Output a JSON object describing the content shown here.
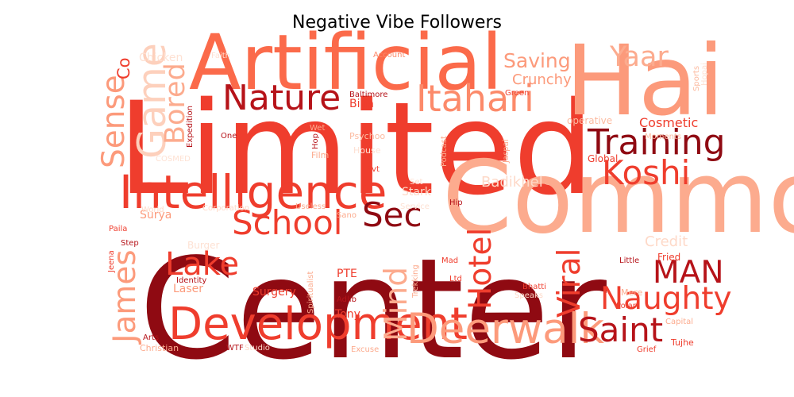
{
  "title": "Negative Vibe Followers",
  "colormap": "Reds",
  "words": [
    {
      "text": "Center",
      "weight": 1.0,
      "shade": 0.92,
      "vertical": false
    },
    {
      "text": "Limited",
      "weight": 0.92,
      "shade": 0.62,
      "vertical": false
    },
    {
      "text": "Common",
      "weight": 0.72,
      "shade": 0.3,
      "vertical": false
    },
    {
      "text": "Hai",
      "weight": 0.7,
      "shade": 0.35,
      "vertical": false
    },
    {
      "text": "Artificial",
      "weight": 0.55,
      "shade": 0.5,
      "vertical": false
    },
    {
      "text": "Intelligence",
      "weight": 0.33,
      "shade": 0.62,
      "vertical": false
    },
    {
      "text": "Development",
      "weight": 0.32,
      "shade": 0.62,
      "vertical": false
    },
    {
      "text": "Deerwalk",
      "weight": 0.3,
      "shade": 0.35,
      "vertical": false
    },
    {
      "text": "Game",
      "weight": 0.28,
      "shade": 0.18,
      "vertical": true
    },
    {
      "text": "Itahari",
      "weight": 0.26,
      "shade": 0.4,
      "vertical": false
    },
    {
      "text": "Nature",
      "weight": 0.25,
      "shade": 0.82,
      "vertical": false
    },
    {
      "text": "Training",
      "weight": 0.25,
      "shade": 0.92,
      "vertical": false
    },
    {
      "text": "School",
      "weight": 0.24,
      "shade": 0.62,
      "vertical": false
    },
    {
      "text": "Koshi",
      "weight": 0.24,
      "shade": 0.62,
      "vertical": false
    },
    {
      "text": "Sec",
      "weight": 0.24,
      "shade": 0.92,
      "vertical": false
    },
    {
      "text": "Saint",
      "weight": 0.24,
      "shade": 0.82,
      "vertical": false
    },
    {
      "text": "Lake",
      "weight": 0.23,
      "shade": 0.62,
      "vertical": false
    },
    {
      "text": "Naughty",
      "weight": 0.22,
      "shade": 0.62,
      "vertical": false
    },
    {
      "text": "Mind",
      "weight": 0.22,
      "shade": 0.3,
      "vertical": true
    },
    {
      "text": "Hotel",
      "weight": 0.22,
      "shade": 0.62,
      "vertical": true
    },
    {
      "text": "Viral",
      "weight": 0.22,
      "shade": 0.62,
      "vertical": true
    },
    {
      "text": "James",
      "weight": 0.22,
      "shade": 0.35,
      "vertical": true
    },
    {
      "text": "Sense",
      "weight": 0.22,
      "shade": 0.35,
      "vertical": true
    },
    {
      "text": "MAN",
      "weight": 0.22,
      "shade": 0.82,
      "vertical": false
    },
    {
      "text": "Bored",
      "weight": 0.2,
      "shade": 0.3,
      "vertical": true
    },
    {
      "text": "Yaar",
      "weight": 0.2,
      "shade": 0.3,
      "vertical": false
    },
    {
      "text": "Saving",
      "weight": 0.14,
      "shade": 0.35,
      "vertical": false
    },
    {
      "text": "Co",
      "weight": 0.12,
      "shade": 0.62,
      "vertical": true
    },
    {
      "text": "Crunchy",
      "weight": 0.1,
      "shade": 0.35,
      "vertical": false
    },
    {
      "text": "Badikhel",
      "weight": 0.1,
      "shade": 0.15,
      "vertical": false
    },
    {
      "text": "Credit",
      "weight": 0.1,
      "shade": 0.15,
      "vertical": false
    },
    {
      "text": "Cosmetic",
      "weight": 0.09,
      "shade": 0.62,
      "vertical": false
    },
    {
      "text": "Stark",
      "weight": 0.08,
      "shade": 0.15,
      "vertical": false
    },
    {
      "text": "Surya",
      "weight": 0.08,
      "shade": 0.35,
      "vertical": false
    },
    {
      "text": "Surgery",
      "weight": 0.08,
      "shade": 0.62,
      "vertical": false
    },
    {
      "text": "Laser",
      "weight": 0.08,
      "shade": 0.35,
      "vertical": false
    },
    {
      "text": "Tony",
      "weight": 0.08,
      "shade": 0.62,
      "vertical": false
    },
    {
      "text": "PTE",
      "weight": 0.08,
      "shade": 0.62,
      "vertical": false
    },
    {
      "text": "Bina",
      "weight": 0.08,
      "shade": 0.62,
      "vertical": false
    },
    {
      "text": "Chicken",
      "weight": 0.08,
      "shade": 0.12,
      "vertical": false
    },
    {
      "text": "Burger",
      "weight": 0.07,
      "shade": 0.12,
      "vertical": false
    },
    {
      "text": "Fried",
      "weight": 0.07,
      "shade": 0.62,
      "vertical": false
    },
    {
      "text": "Global",
      "weight": 0.07,
      "shade": 0.62,
      "vertical": false
    },
    {
      "text": "operative",
      "weight": 0.07,
      "shade": 0.25,
      "vertical": false
    },
    {
      "text": "Christian",
      "weight": 0.06,
      "shade": 0.3,
      "vertical": false
    },
    {
      "text": "Tujhe",
      "weight": 0.06,
      "shade": 0.62,
      "vertical": false
    },
    {
      "text": "Psychoo",
      "weight": 0.06,
      "shade": 0.25,
      "vertical": false
    },
    {
      "text": "Film",
      "weight": 0.06,
      "shade": 0.3,
      "vertical": false
    },
    {
      "text": "Mere",
      "weight": 0.06,
      "shade": 0.3,
      "vertical": false
    },
    {
      "text": "House",
      "weight": 0.06,
      "shade": 0.12,
      "vertical": false
    },
    {
      "text": "Account",
      "weight": 0.055,
      "shade": 0.4,
      "vertical": false
    },
    {
      "text": "Baltimore",
      "weight": 0.055,
      "shade": 0.82,
      "vertical": false
    },
    {
      "text": "Green",
      "weight": 0.055,
      "shade": 0.62,
      "vertical": false
    },
    {
      "text": "One",
      "weight": 0.055,
      "shade": 0.82,
      "vertical": false
    },
    {
      "text": "Wet",
      "weight": 0.05,
      "shade": 0.3,
      "vertical": false
    },
    {
      "text": "Pvt",
      "weight": 0.05,
      "shade": 0.62,
      "vertical": false
    },
    {
      "text": "Set",
      "weight": 0.05,
      "shade": 0.12,
      "vertical": false
    },
    {
      "text": "Service",
      "weight": 0.05,
      "shade": 0.12,
      "vertical": false
    },
    {
      "text": "Useless",
      "weight": 0.05,
      "shade": 0.3,
      "vertical": false
    },
    {
      "text": "Corporation",
      "weight": 0.05,
      "shade": 0.15,
      "vertical": false
    },
    {
      "text": "World",
      "weight": 0.05,
      "shade": 0.15,
      "vertical": false
    },
    {
      "text": "Paila",
      "weight": 0.05,
      "shade": 0.62,
      "vertical": false
    },
    {
      "text": "Step",
      "weight": 0.05,
      "shade": 0.82,
      "vertical": false
    },
    {
      "text": "Identity",
      "weight": 0.05,
      "shade": 0.82,
      "vertical": false
    },
    {
      "text": "Hip",
      "weight": 0.05,
      "shade": 0.82,
      "vertical": false
    },
    {
      "text": "Sano",
      "weight": 0.045,
      "shade": 0.3,
      "vertical": false
    },
    {
      "text": "Mad",
      "weight": 0.05,
      "shade": 0.62,
      "vertical": false
    },
    {
      "text": "Ltd",
      "weight": 0.05,
      "shade": 0.62,
      "vertical": false
    },
    {
      "text": "Little",
      "weight": 0.05,
      "shade": 0.82,
      "vertical": false
    },
    {
      "text": "Polar",
      "weight": 0.05,
      "shade": 0.62,
      "vertical": false
    },
    {
      "text": "Bhatti",
      "weight": 0.05,
      "shade": 0.62,
      "vertical": false
    },
    {
      "text": "Speaks",
      "weight": 0.05,
      "shade": 0.15,
      "vertical": false
    },
    {
      "text": "Capital",
      "weight": 0.05,
      "shade": 0.3,
      "vertical": false
    },
    {
      "text": "Grief",
      "weight": 0.05,
      "shade": 0.62,
      "vertical": false
    },
    {
      "text": "Excuse",
      "weight": 0.05,
      "shade": 0.3,
      "vertical": false
    },
    {
      "text": "Studio",
      "weight": 0.05,
      "shade": 0.15,
      "vertical": false
    },
    {
      "text": "WTF",
      "weight": 0.05,
      "shade": 0.82,
      "vertical": false
    },
    {
      "text": "Arts",
      "weight": 0.05,
      "shade": 0.82,
      "vertical": false
    },
    {
      "text": "Adlib",
      "weight": 0.05,
      "shade": 0.82,
      "vertical": false
    },
    {
      "text": "Jeena",
      "weight": 0.05,
      "shade": 0.62,
      "vertical": true
    },
    {
      "text": "Trekking",
      "weight": 0.05,
      "shade": 0.3,
      "vertical": true
    },
    {
      "text": "Spiritualist",
      "weight": 0.045,
      "shade": 0.3,
      "vertical": true
    },
    {
      "text": "Podcast",
      "weight": 0.05,
      "shade": 0.3,
      "vertical": true
    },
    {
      "text": "Jaspal",
      "weight": 0.05,
      "shade": 0.3,
      "vertical": true
    },
    {
      "text": "Hop",
      "weight": 0.045,
      "shade": 0.82,
      "vertical": true
    },
    {
      "text": "Expedition",
      "weight": 0.045,
      "shade": 0.82,
      "vertical": true
    },
    {
      "text": "Sports",
      "weight": 0.045,
      "shade": 0.25,
      "vertical": true
    },
    {
      "text": "Moments",
      "weight": 0.045,
      "shade": 0.25,
      "vertical": false
    },
    {
      "text": "COSMED",
      "weight": 0.045,
      "shade": 0.12,
      "vertical": false
    },
    {
      "text": "Faith",
      "weight": 0.045,
      "shade": 0.12,
      "vertical": false
    },
    {
      "text": "Hopai",
      "weight": 0.04,
      "shade": 0.12,
      "vertical": true
    }
  ]
}
